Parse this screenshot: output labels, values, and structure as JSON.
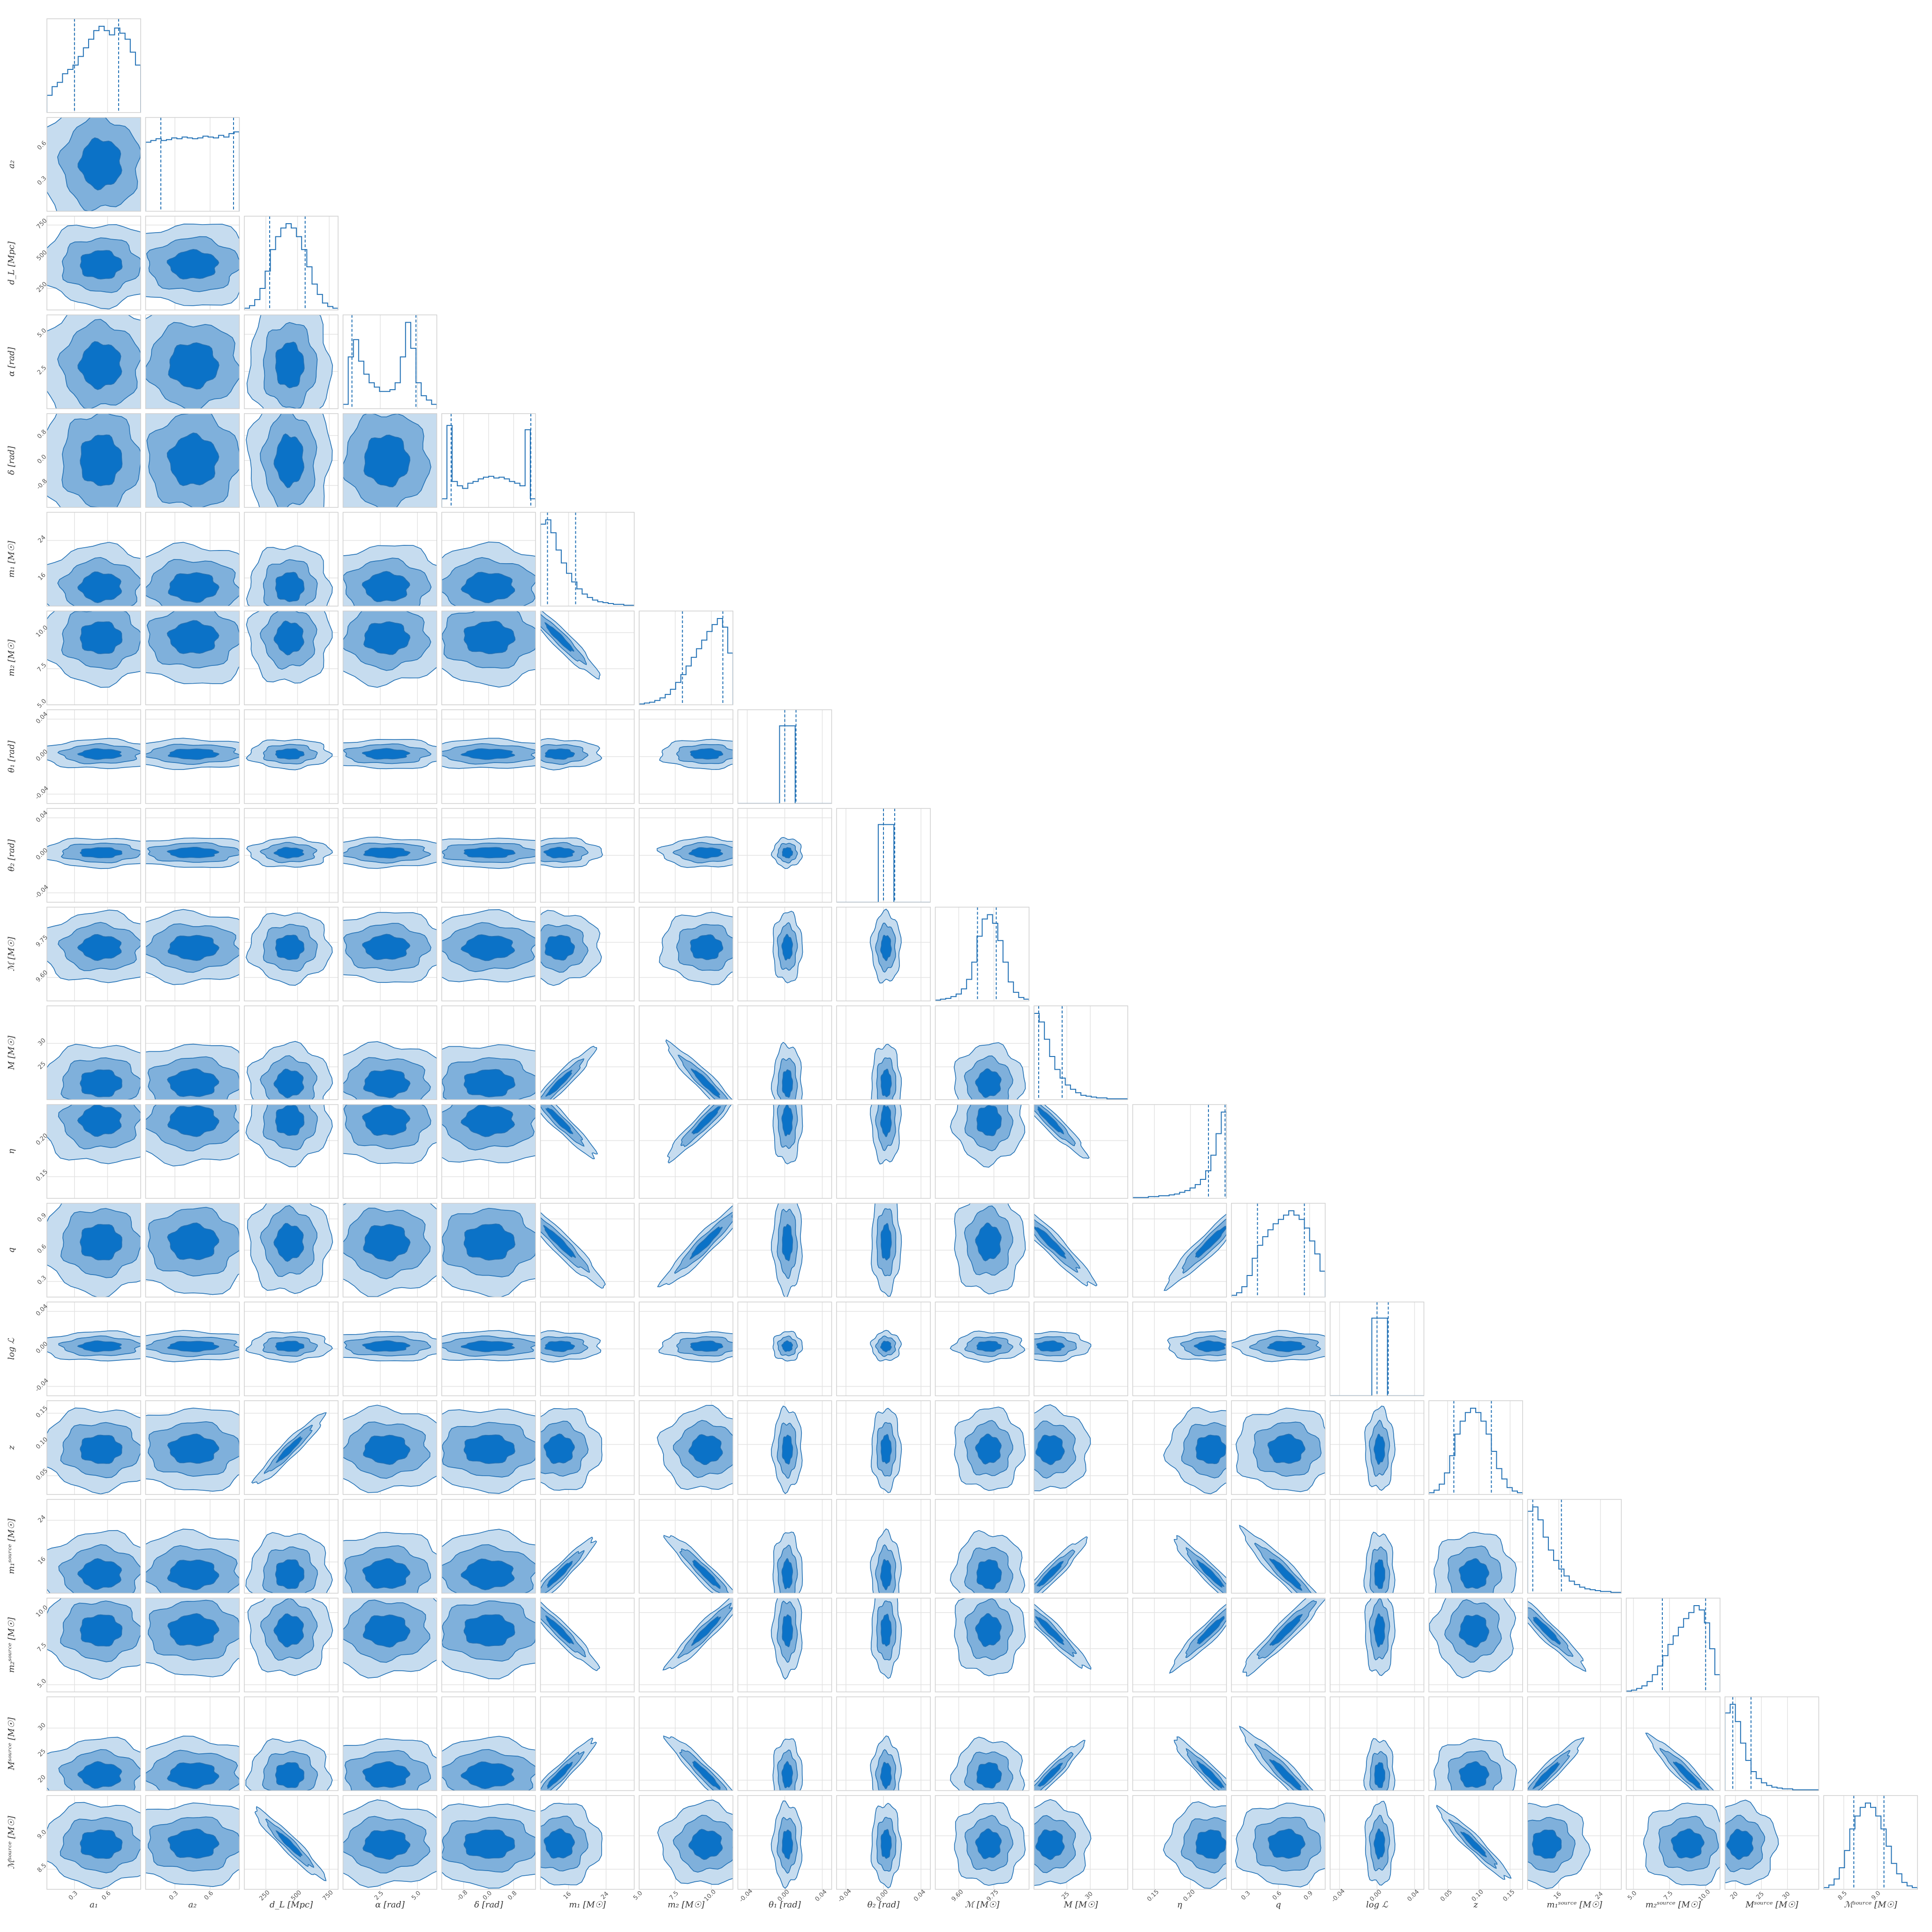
{
  "chart_data": {
    "type": "corner",
    "grid": true,
    "colors": {
      "light": "#c6dcef",
      "mid": "#7fb0db",
      "dark": "#0b72c7",
      "line": "#2271b5",
      "grid": "#e3e3e3",
      "frame": "#cfcfcf"
    },
    "params": [
      {
        "label": "a₁",
        "range": [
          0.05,
          0.9
        ],
        "ticks": [
          "0.3",
          "0.6"
        ],
        "tickvals": [
          0.3,
          0.6
        ],
        "quantiles": [
          0.3,
          0.7
        ],
        "hist": [
          0.2,
          0.3,
          0.35,
          0.45,
          0.5,
          0.55,
          0.65,
          0.75,
          0.85,
          0.95,
          1.0,
          0.95,
          0.9,
          0.98,
          0.92,
          0.85,
          0.7,
          0.55
        ]
      },
      {
        "label": "a₂",
        "range": [
          0.05,
          0.85
        ],
        "ticks": [
          "0.3",
          "0.6"
        ],
        "tickvals": [
          0.3,
          0.6
        ],
        "quantiles": [
          0.18,
          0.8
        ],
        "hist": [
          0.8,
          0.82,
          0.84,
          0.82,
          0.83,
          0.85,
          0.84,
          0.86,
          0.85,
          0.84,
          0.85,
          0.87,
          0.86,
          0.85,
          0.88,
          0.86,
          0.9,
          0.92
        ]
      },
      {
        "label": "d_L [Mpc]",
        "range": [
          80,
          820
        ],
        "ticks": [
          "250",
          "500",
          "750"
        ],
        "tickvals": [
          250,
          500,
          750
        ],
        "quantiles": [
          280,
          560
        ],
        "hist": [
          0.02,
          0.05,
          0.12,
          0.25,
          0.45,
          0.7,
          0.85,
          0.95,
          1.0,
          0.95,
          0.85,
          0.7,
          0.5,
          0.3,
          0.18,
          0.08,
          0.04,
          0.02
        ]
      },
      {
        "label": "α [rad]",
        "range": [
          0,
          6.3
        ],
        "ticks": [
          "2.5",
          "5.0"
        ],
        "tickvals": [
          2.5,
          5.0
        ],
        "quantiles": [
          0.6,
          4.9
        ],
        "hist": [
          0.05,
          0.6,
          0.8,
          0.55,
          0.4,
          0.3,
          0.25,
          0.2,
          0.2,
          0.22,
          0.3,
          0.6,
          1.0,
          0.7,
          0.3,
          0.15,
          0.1,
          0.05
        ]
      },
      {
        "label": "δ [rad]",
        "range": [
          -1.5,
          1.5
        ],
        "ticks": [
          "-0.8",
          "0.0",
          "0.8"
        ],
        "tickvals": [
          -0.8,
          0.0,
          0.8
        ],
        "quantiles": [
          -1.2,
          1.35
        ],
        "hist": [
          0.1,
          0.95,
          0.3,
          0.25,
          0.22,
          0.28,
          0.3,
          0.33,
          0.35,
          0.36,
          0.34,
          0.35,
          0.33,
          0.3,
          0.28,
          0.25,
          0.9,
          0.1
        ]
      },
      {
        "label": "m₁ [M☉]",
        "range": [
          10,
          30
        ],
        "ticks": [
          "16",
          "24"
        ],
        "tickvals": [
          16,
          24
        ],
        "quantiles": [
          11.5,
          17.5
        ],
        "hist": [
          0.95,
          1.0,
          0.85,
          0.65,
          0.5,
          0.38,
          0.28,
          0.2,
          0.14,
          0.1,
          0.07,
          0.05,
          0.04,
          0.03,
          0.02,
          0.02,
          0.01,
          0.01
        ]
      },
      {
        "label": "m₂ [M☉]",
        "range": [
          5,
          11.5
        ],
        "ticks": [
          "5.0",
          "7.5",
          "10.0"
        ],
        "tickvals": [
          5.0,
          7.5,
          10.0
        ],
        "quantiles": [
          8.0,
          10.8
        ],
        "hist": [
          0.01,
          0.02,
          0.03,
          0.05,
          0.08,
          0.12,
          0.18,
          0.26,
          0.35,
          0.45,
          0.55,
          0.65,
          0.75,
          0.85,
          0.93,
          1.0,
          0.9,
          0.6
        ]
      },
      {
        "label": "θ₁ [rad]",
        "range": [
          -0.05,
          0.05
        ],
        "ticks": [
          "-0.04",
          "0.00",
          "0.04"
        ],
        "tickvals": [
          -0.04,
          0.0,
          0.04
        ],
        "quantiles": [
          0.0,
          0.012
        ],
        "hist": [
          0,
          0,
          0,
          0,
          0,
          0,
          0,
          0,
          0.9,
          0.9,
          0.9,
          0,
          0,
          0,
          0,
          0,
          0,
          0
        ]
      },
      {
        "label": "θ₂ [rad]",
        "range": [
          -0.05,
          0.05
        ],
        "ticks": [
          "-0.04",
          "0.00",
          "0.04"
        ],
        "tickvals": [
          -0.04,
          0.0,
          0.04
        ],
        "quantiles": [
          0.0,
          0.012
        ],
        "hist": [
          0,
          0,
          0,
          0,
          0,
          0,
          0,
          0,
          0.9,
          0.9,
          0.9,
          0,
          0,
          0,
          0,
          0,
          0,
          0
        ]
      },
      {
        "label": "ℳ [M☉]",
        "range": [
          9.5,
          9.9
        ],
        "ticks": [
          "9.60",
          "9.75"
        ],
        "tickvals": [
          9.6,
          9.75
        ],
        "quantiles": [
          9.68,
          9.76
        ],
        "hist": [
          0.01,
          0.02,
          0.03,
          0.05,
          0.08,
          0.14,
          0.25,
          0.45,
          0.75,
          0.95,
          1.0,
          0.9,
          0.7,
          0.45,
          0.22,
          0.1,
          0.04,
          0.02
        ]
      },
      {
        "label": "M [M☉]",
        "range": [
          18,
          38
        ],
        "ticks": [
          "25",
          "30"
        ],
        "tickvals": [
          25,
          30
        ],
        "quantiles": [
          19.0,
          24.0
        ],
        "hist": [
          1.0,
          0.9,
          0.7,
          0.5,
          0.35,
          0.25,
          0.17,
          0.12,
          0.08,
          0.05,
          0.04,
          0.03,
          0.02,
          0.02,
          0.01,
          0.01,
          0.01,
          0.01
        ]
      },
      {
        "label": "η",
        "range": [
          0.12,
          0.25
        ],
        "ticks": [
          "0.15",
          "0.20"
        ],
        "tickvals": [
          0.15,
          0.2
        ],
        "quantiles": [
          0.225,
          0.248
        ],
        "hist": [
          0.01,
          0.01,
          0.01,
          0.02,
          0.02,
          0.03,
          0.03,
          0.04,
          0.05,
          0.07,
          0.09,
          0.12,
          0.16,
          0.22,
          0.32,
          0.5,
          0.75,
          1.0
        ]
      },
      {
        "label": "q",
        "range": [
          0.15,
          1.05
        ],
        "ticks": [
          "0.3",
          "0.6",
          "0.9"
        ],
        "tickvals": [
          0.3,
          0.6,
          0.9
        ],
        "quantiles": [
          0.4,
          0.85
        ],
        "hist": [
          0.02,
          0.05,
          0.12,
          0.25,
          0.45,
          0.6,
          0.7,
          0.78,
          0.85,
          0.9,
          0.95,
          1.0,
          0.95,
          0.9,
          0.8,
          0.65,
          0.5,
          0.3
        ]
      },
      {
        "label": "log ℒ",
        "range": [
          -0.05,
          0.05
        ],
        "ticks": [
          "-0.04",
          "0.00",
          "0.04"
        ],
        "tickvals": [
          -0.04,
          0.0,
          0.04
        ],
        "quantiles": [
          0.0,
          0.012
        ],
        "hist": [
          0,
          0,
          0,
          0,
          0,
          0,
          0,
          0,
          0.9,
          0.9,
          0.9,
          0,
          0,
          0,
          0,
          0,
          0,
          0
        ]
      },
      {
        "label": "z",
        "range": [
          0.02,
          0.17
        ],
        "ticks": [
          "0.05",
          "0.10",
          "0.15"
        ],
        "tickvals": [
          0.05,
          0.1,
          0.15
        ],
        "quantiles": [
          0.06,
          0.12
        ],
        "hist": [
          0.02,
          0.05,
          0.12,
          0.25,
          0.45,
          0.7,
          0.85,
          0.95,
          1.0,
          0.95,
          0.85,
          0.7,
          0.5,
          0.3,
          0.18,
          0.08,
          0.04,
          0.02
        ]
      },
      {
        "label": "m₁ˢᵒᵘʳᶜᵉ [M☉]",
        "range": [
          10,
          28
        ],
        "ticks": [
          "16",
          "24"
        ],
        "tickvals": [
          16,
          24
        ],
        "quantiles": [
          11.0,
          16.5
        ],
        "hist": [
          0.95,
          1.0,
          0.85,
          0.65,
          0.5,
          0.38,
          0.28,
          0.2,
          0.14,
          0.1,
          0.07,
          0.05,
          0.04,
          0.03,
          0.02,
          0.02,
          0.01,
          0.01
        ]
      },
      {
        "label": "m₂ˢᵒᵘʳᶜᵉ [M☉]",
        "range": [
          4.5,
          11
        ],
        "ticks": [
          "5.0",
          "7.5",
          "10.0"
        ],
        "tickvals": [
          5.0,
          7.5,
          10.0
        ],
        "quantiles": [
          7.0,
          10.0
        ],
        "hist": [
          0.01,
          0.02,
          0.04,
          0.07,
          0.12,
          0.2,
          0.3,
          0.42,
          0.55,
          0.65,
          0.75,
          0.85,
          0.92,
          1.0,
          0.95,
          0.8,
          0.5,
          0.2
        ]
      },
      {
        "label": "Mˢᵒᵘʳᶜᵉ [M☉]",
        "range": [
          18,
          36
        ],
        "ticks": [
          "20",
          "25",
          "30"
        ],
        "tickvals": [
          20,
          25,
          30
        ],
        "quantiles": [
          19.5,
          23.0
        ],
        "hist": [
          0.9,
          1.0,
          0.8,
          0.55,
          0.35,
          0.22,
          0.14,
          0.09,
          0.06,
          0.04,
          0.03,
          0.02,
          0.02,
          0.01,
          0.01,
          0.01,
          0.01,
          0.01
        ]
      },
      {
        "label": "ℳˢᵒᵘʳᶜᵉ [M☉]",
        "range": [
          8.2,
          9.6
        ],
        "ticks": [
          "8.5",
          "9.0"
        ],
        "tickvals": [
          8.5,
          9.0
        ],
        "quantiles": [
          8.65,
          9.1
        ],
        "hist": [
          0.02,
          0.05,
          0.12,
          0.25,
          0.45,
          0.7,
          0.85,
          0.95,
          1.0,
          0.95,
          0.85,
          0.7,
          0.5,
          0.3,
          0.18,
          0.08,
          0.04,
          0.02
        ]
      }
    ],
    "pairs": {
      "indices_note": "",
      "links": [
        [
          5,
          6,
          -0.95
        ],
        [
          5,
          10,
          0.98
        ],
        [
          5,
          11,
          -0.9
        ],
        [
          5,
          12,
          -0.92
        ],
        [
          5,
          15,
          0.98
        ],
        [
          5,
          16,
          -0.93
        ],
        [
          5,
          17,
          0.95
        ],
        [
          6,
          10,
          -0.9
        ],
        [
          6,
          11,
          0.92
        ],
        [
          6,
          12,
          0.98
        ],
        [
          6,
          15,
          -0.93
        ],
        [
          6,
          16,
          0.98
        ],
        [
          6,
          17,
          -0.88
        ],
        [
          10,
          11,
          -0.9
        ],
        [
          10,
          12,
          -0.92
        ],
        [
          10,
          15,
          0.96
        ],
        [
          10,
          16,
          -0.92
        ],
        [
          10,
          17,
          0.97
        ],
        [
          11,
          12,
          0.95
        ],
        [
          11,
          15,
          -0.9
        ],
        [
          11,
          16,
          0.93
        ],
        [
          11,
          17,
          -0.85
        ],
        [
          12,
          15,
          -0.92
        ],
        [
          12,
          16,
          0.97
        ],
        [
          12,
          17,
          -0.88
        ],
        [
          15,
          16,
          -0.93
        ],
        [
          15,
          17,
          0.93
        ],
        [
          16,
          17,
          -0.85
        ],
        [
          2,
          14,
          0.99
        ],
        [
          2,
          18,
          -0.95
        ],
        [
          14,
          18,
          -0.95
        ],
        [
          9,
          10,
          0.35
        ],
        [
          9,
          11,
          -0.3
        ],
        [
          9,
          18,
          0.25
        ]
      ]
    }
  }
}
